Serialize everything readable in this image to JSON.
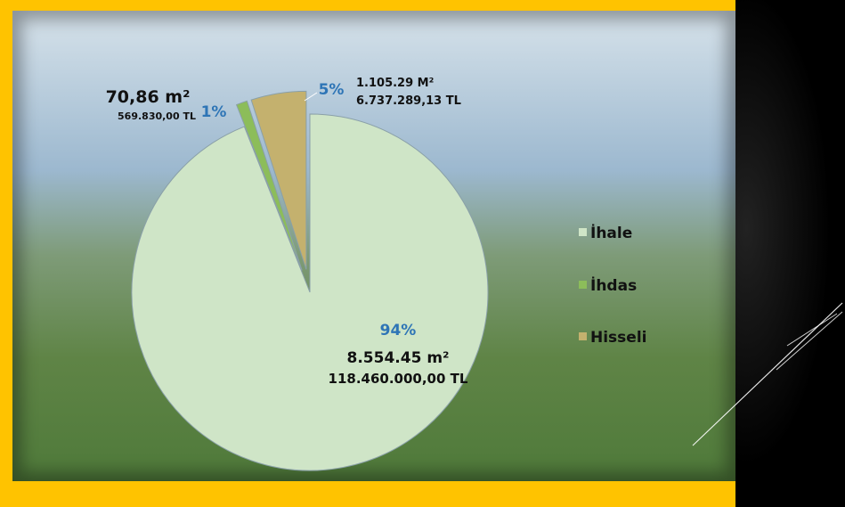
{
  "chart_data": {
    "type": "pie",
    "title": "",
    "slices": [
      {
        "name": "İhale",
        "value": 94,
        "percent_label": "94%",
        "area_label": "8.554.45 m²",
        "amount_label": "118.460.000,00 TL",
        "color": "#cfe5c7"
      },
      {
        "name": "İhdas",
        "value": 1,
        "percent_label": "1%",
        "area_label": "70,86 m²",
        "amount_label": "569.830,00 TL",
        "color": "#8cbd5a"
      },
      {
        "name": "Hisseli",
        "value": 5,
        "percent_label": "5%",
        "area_label": "1.105.29 M²",
        "amount_label": "6.737.289,13 TL",
        "color": "#c4b16e"
      }
    ],
    "legend_position": "right"
  },
  "colors": {
    "frame": "#ffc300",
    "percent_text": "#2e75b6"
  }
}
